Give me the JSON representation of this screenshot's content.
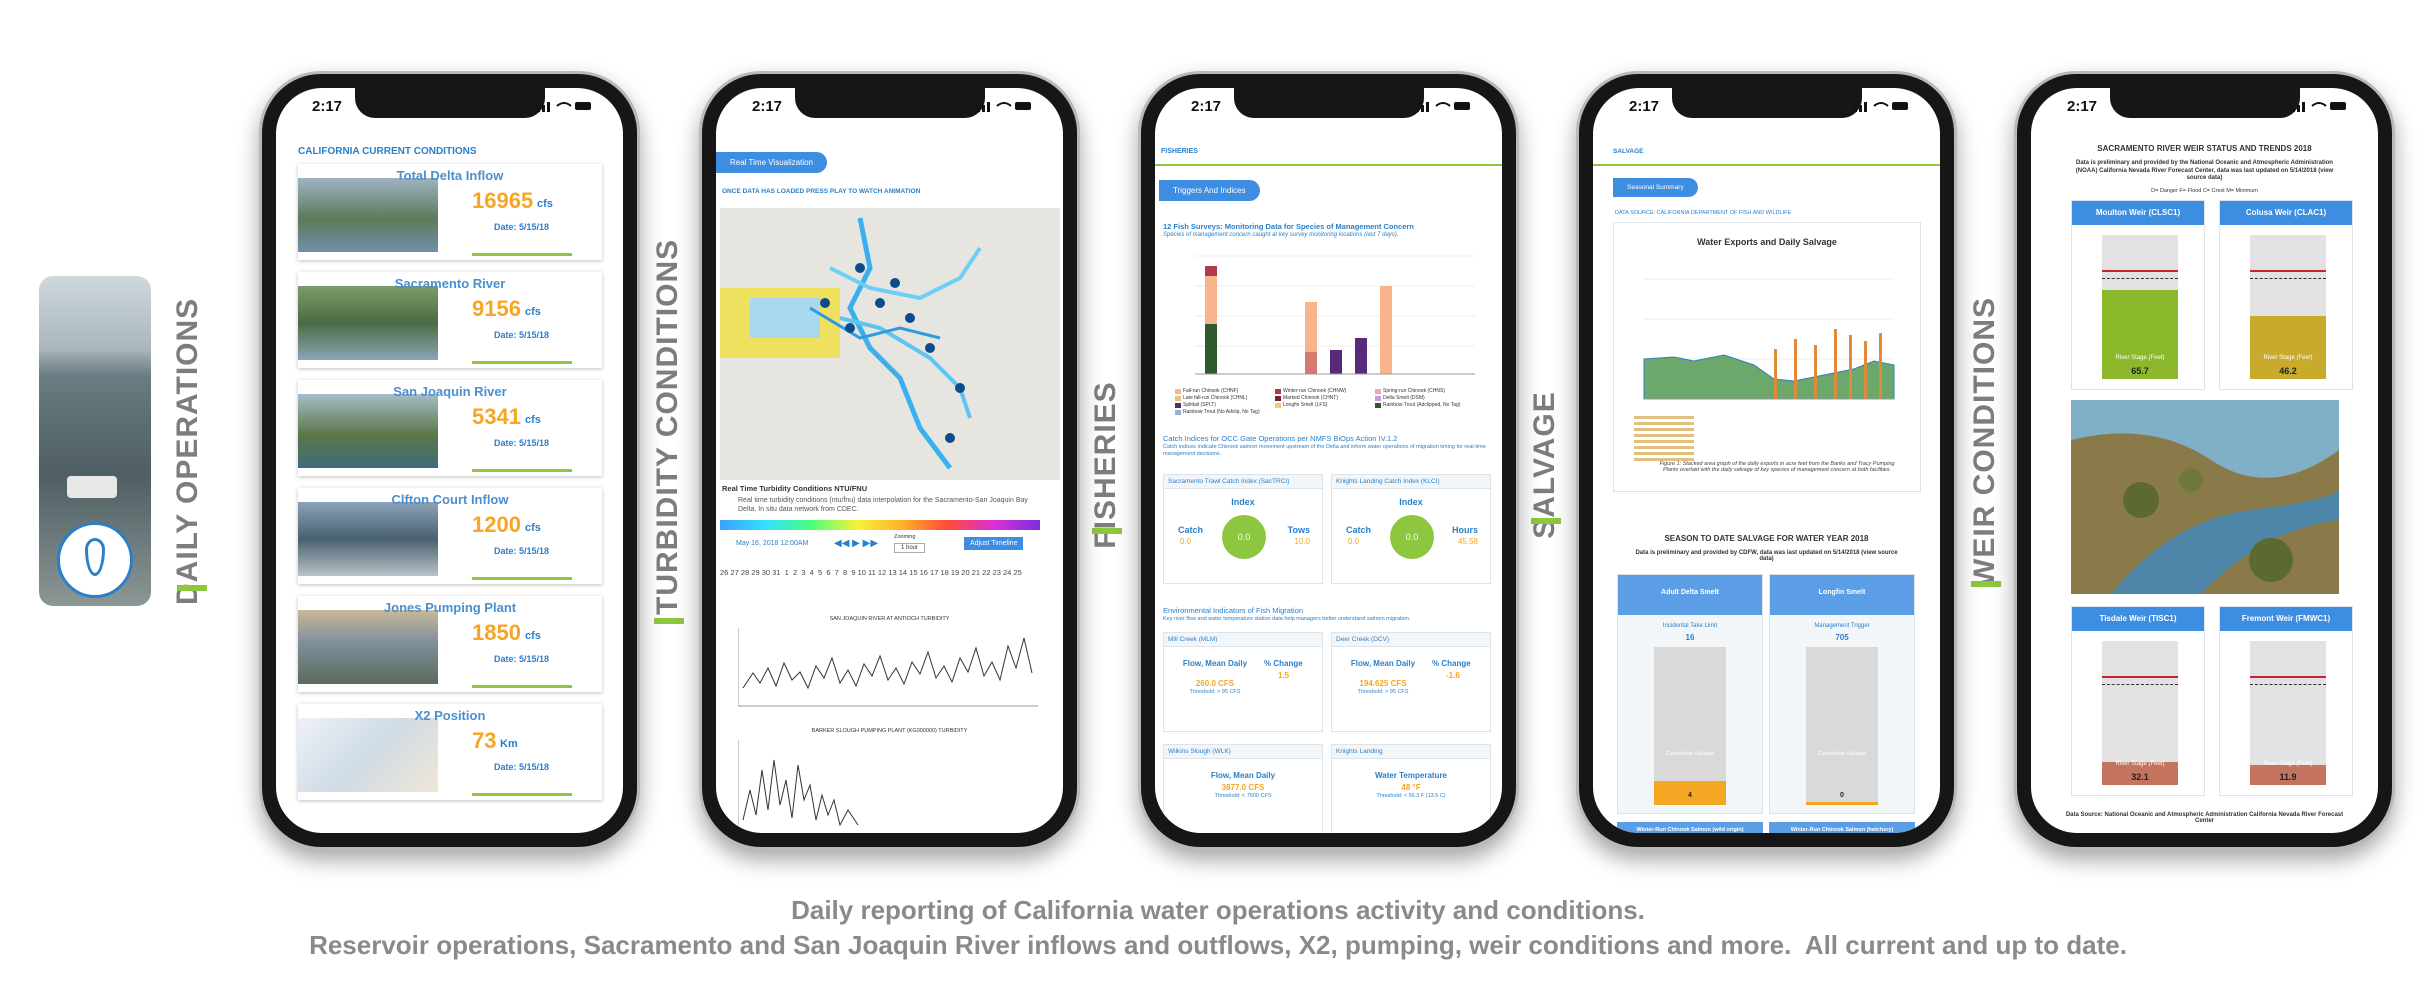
{
  "side_labels": [
    "DAILY OPERATIONS",
    "TURBIDITY CONDITIONS",
    "FISHERIES",
    "SALVAGE",
    "WEIR CONDITIONS"
  ],
  "status_time": "2:17",
  "daily": {
    "title": "CALIFORNIA CURRENT CONDITIONS",
    "cards": [
      {
        "name": "Total Delta Inflow",
        "value": 16965,
        "unit": "cfs",
        "date": "Date: 5/15/18"
      },
      {
        "name": "Sacramento River",
        "value": 9156,
        "unit": "cfs",
        "date": "Date: 5/15/18"
      },
      {
        "name": "San Joaquin River",
        "value": 5341,
        "unit": "cfs",
        "date": "Date: 5/15/18"
      },
      {
        "name": "Clfton Court Inflow",
        "value": 1200,
        "unit": "cfs",
        "date": "Date: 5/15/18"
      },
      {
        "name": "Jones Pumping Plant",
        "value": 1850,
        "unit": "cfs",
        "date": "Date: 5/15/18"
      },
      {
        "name": "X2 Position",
        "value": 73,
        "unit": "Km",
        "date": "Date: 5/15/18"
      }
    ]
  },
  "turbidity": {
    "tab": "Real Time Visualization",
    "instruction": "ONCE DATA HAS LOADED PRESS PLAY TO WATCH ANIMATION",
    "map_title": "Real Time Turbidity Conditions NTU/FNU",
    "map_note": "Real time turbidity conditions (ntu/fnu) data interpolation for the Sacramento-San Joaquin Bay Delta. In situ data network from CDEC.",
    "timestamp": "May 16, 2018 12:00AM",
    "interval_label": "Zooming",
    "interval": "1 hour",
    "button": "Adjust Timeline",
    "timeline_days": "26 27 28 29 30 31  1  2  3  4  5  6  7  8  9 10 11 12 13 14 15 16 17 18 19 20 21 22 23 24 25",
    "chart_titles": [
      "SAN JOAQUIN RIVER AT ANTIOCH TURBIDITY",
      "BARKER SLOUGH PUMPING PLANT (KG000000) TURBIDITY"
    ]
  },
  "fisheries": {
    "header": "FISHERIES",
    "tab": "Triggers And Indices",
    "survey_title": "12 Fish Surveys: Monitoring Data for Species of Management Concern",
    "survey_subtitle": "Species of management concern caught at key survey monitoring locations (last 7 days).",
    "legend": [
      "Fall-run Chinook (CHNF)",
      "Winter-run Chinook (CHNW)",
      "Spring-run Chinook (CHNS)",
      "Late fall-run Chinook (CHNL)",
      "Marked Chinook (CHNT)",
      "Delta Smelt (DSM)",
      "Splittail (SPLT)",
      "Longfin Smelt (LFS)",
      "Rainbow Trout (Adclipped, No Tag)",
      "Rainbow Trout (No Adclip, No Tag)"
    ],
    "catch_title": "Catch Indices for OCC Gate Operations per NMFS BiOps Action IV.1.2",
    "catch_note": "Catch indices indicate Chinook salmon movement upstream of the Delta and inform water operations of migration timing for real-time management decisions.",
    "catch_label": "Catch",
    "index_label": "Index",
    "indices": [
      {
        "name": "Sacramento Trawl Catch Index (SacTRCI)",
        "catch": "0.0",
        "index": "0.0",
        "other_label": "Tows",
        "other": "10.0"
      },
      {
        "name": "Knights Landing Catch Index (KLCI)",
        "catch": "0.0",
        "index": "0.0",
        "other_label": "Hours",
        "other": "45.58"
      }
    ],
    "env_title": "Environmental Indicators of Fish Migration",
    "env_note": "Key river flow and water temperature station data help managers better understand salmon migration.",
    "change_label": "% Change",
    "stations": [
      {
        "name": "Mill Creek (MLM)",
        "metric": "Flow, Mean Daily",
        "value": "260.0 CFS",
        "threshold": "Threshold: > 95 CFS",
        "change": "1.5"
      },
      {
        "name": "Deer Creek (DCV)",
        "metric": "Flow, Mean Daily",
        "value": "194.625 CFS",
        "threshold": "Threshold: > 95 CFS",
        "change": "-1.6"
      },
      {
        "name": "Wilkins Slough (WLK)",
        "metric": "Flow, Mean Daily",
        "value": "3877.0 CFS",
        "threshold": "Threshold: < 7500 CFS"
      },
      {
        "name": "Knights Landing",
        "metric": "Water Temperature",
        "value": "48 °F",
        "threshold": "Threshold: < 56.3 F (13.5 C)"
      }
    ]
  },
  "salvage": {
    "header": "SALVAGE",
    "tab": "Seasonal Summary",
    "source": "DATA SOURCE: CALIFORNIA DEPARTMENT OF FISH AND WILDLIFE",
    "chart_title": "Water Exports and Daily Salvage",
    "caption": "Figure 1: Stacked area graph of the daily exports in acre feet from the Banks and Tracy Pumping Plants overlaid with the daily salvage of key species of management concern at both facilities.",
    "season_title": "SEASON TO DATE SALVAGE FOR WATER YEAR 2018",
    "season_note": "Data is preliminary and provided by CDFW, data was last updated on 5/14/2018 (view source data)",
    "species": [
      {
        "name": "Adult Delta Smelt",
        "limit_label": "Incidental Take Limit",
        "limit": "16",
        "bar_label": "Cumulative Salvage",
        "bar_value": "4"
      },
      {
        "name": "Longfin Smelt",
        "limit_label": "Management Trigger",
        "limit": "705",
        "bar_label": "Cumulative Salvage",
        "bar_value": "0"
      }
    ],
    "next": [
      "Winter-Run Chinook Salmon (wild origin)",
      "Winter-Run Chinook Salmon (hatchery)"
    ]
  },
  "weir": {
    "title": "SACRAMENTO RIVER WEIR STATUS AND TRENDS 2018",
    "note": "Data is preliminary and provided by the National Oceanic and Atmospheric Administration (NOAA) California Nevada River Forecast Center, data was last updated on 5/14/2018 (view source data)",
    "legend": "D= Danger F= Flood C= Crest M= Minimum",
    "stage_label": "River Stage (Feet)",
    "weirs": [
      {
        "name": "Moulton Weir (CLSC1)",
        "stage": "65.7",
        "color": "#8cb82b"
      },
      {
        "name": "Colusa Weir (CLAC1)",
        "stage": "46.2",
        "color": "#c9aa2c"
      },
      {
        "name": "Tisdale Weir (TISC1)",
        "stage": "32.1",
        "color": "#c4735f"
      },
      {
        "name": "Fremont Weir (FMWC1)",
        "stage": "11.9",
        "color": "#c4735f"
      }
    ],
    "footer": "Data Source: National Oceanic and Atmospheric Administration California Nevada River Forecast Center"
  },
  "caption": [
    "Daily reporting of California water operations activity and conditions.",
    "Reservoir operations, Sacramento and San Joaquin River inflows and outflows, X2, pumping, weir conditions and more.  All current and up to date."
  ]
}
